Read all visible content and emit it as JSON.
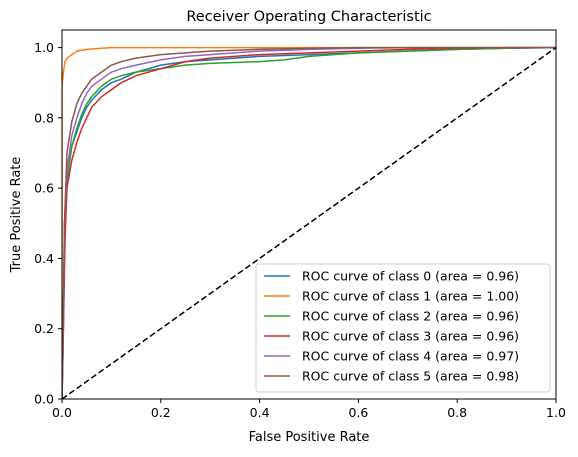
{
  "chart_data": {
    "type": "line",
    "title": "Receiver Operating Characteristic",
    "xlabel": "False Positive Rate",
    "ylabel": "True Positive Rate",
    "xlim": [
      0.0,
      1.0
    ],
    "ylim": [
      0.0,
      1.05
    ],
    "xticks": [
      "0.0",
      "0.2",
      "0.4",
      "0.6",
      "0.8",
      "1.0"
    ],
    "yticks": [
      "0.0",
      "0.2",
      "0.4",
      "0.6",
      "0.8",
      "1.0"
    ],
    "grid": false,
    "legend_position": "lower-right",
    "series": [
      {
        "name": "ROC curve of class 0 (area = 0.96)",
        "color": "#1f77b4",
        "x": [
          0,
          0.002,
          0.005,
          0.01,
          0.015,
          0.02,
          0.03,
          0.04,
          0.05,
          0.06,
          0.08,
          0.1,
          0.12,
          0.15,
          0.2,
          0.25,
          0.3,
          0.4,
          0.5,
          0.6,
          0.7,
          0.8,
          0.9,
          1.0
        ],
        "y": [
          0,
          0.2,
          0.45,
          0.6,
          0.68,
          0.72,
          0.76,
          0.8,
          0.83,
          0.85,
          0.88,
          0.9,
          0.91,
          0.93,
          0.95,
          0.96,
          0.965,
          0.975,
          0.98,
          0.985,
          0.99,
          0.995,
          0.998,
          1.0
        ]
      },
      {
        "name": "ROC curve of class 1 (area = 1.00)",
        "color": "#ff7f0e",
        "x": [
          0,
          0.0,
          0.003,
          0.006,
          0.01,
          0.015,
          0.02,
          0.03,
          0.05,
          0.08,
          0.1,
          0.2,
          0.4,
          0.6,
          1.0
        ],
        "y": [
          0,
          0.89,
          0.93,
          0.96,
          0.97,
          0.975,
          0.98,
          0.99,
          0.995,
          0.998,
          1.0,
          1.0,
          1.0,
          1.0,
          1.0
        ]
      },
      {
        "name": "ROC curve of class 2 (area = 0.96)",
        "color": "#2ca02c",
        "x": [
          0,
          0.003,
          0.006,
          0.01,
          0.02,
          0.03,
          0.04,
          0.05,
          0.06,
          0.08,
          0.1,
          0.12,
          0.15,
          0.2,
          0.25,
          0.3,
          0.4,
          0.45,
          0.5,
          0.6,
          0.7,
          0.8,
          0.9,
          1.0
        ],
        "y": [
          0,
          0.25,
          0.5,
          0.62,
          0.72,
          0.77,
          0.81,
          0.84,
          0.86,
          0.89,
          0.91,
          0.92,
          0.93,
          0.94,
          0.95,
          0.955,
          0.96,
          0.965,
          0.975,
          0.985,
          0.99,
          0.995,
          0.998,
          1.0
        ]
      },
      {
        "name": "ROC curve of class 3 (area = 0.96)",
        "color": "#d62728",
        "x": [
          0,
          0.003,
          0.006,
          0.01,
          0.02,
          0.03,
          0.04,
          0.05,
          0.06,
          0.08,
          0.1,
          0.12,
          0.15,
          0.2,
          0.25,
          0.3,
          0.4,
          0.5,
          0.6,
          0.7,
          0.8,
          0.9,
          1.0
        ],
        "y": [
          0,
          0.2,
          0.45,
          0.6,
          0.68,
          0.73,
          0.77,
          0.8,
          0.83,
          0.86,
          0.88,
          0.9,
          0.92,
          0.94,
          0.96,
          0.97,
          0.98,
          0.985,
          0.99,
          0.995,
          0.998,
          1.0,
          1.0
        ]
      },
      {
        "name": "ROC curve of class 4 (area = 0.97)",
        "color": "#9467bd",
        "x": [
          0,
          0.002,
          0.005,
          0.01,
          0.02,
          0.03,
          0.04,
          0.05,
          0.06,
          0.08,
          0.1,
          0.12,
          0.15,
          0.2,
          0.25,
          0.3,
          0.4,
          0.5,
          0.6,
          0.7,
          0.8,
          0.9,
          1.0
        ],
        "y": [
          0,
          0.13,
          0.5,
          0.65,
          0.75,
          0.8,
          0.84,
          0.87,
          0.89,
          0.91,
          0.93,
          0.94,
          0.95,
          0.965,
          0.975,
          0.98,
          0.99,
          0.995,
          0.998,
          1.0,
          1.0,
          1.0,
          1.0
        ]
      },
      {
        "name": "ROC curve of class 5 (area = 0.98)",
        "color": "#8c564b",
        "x": [
          0,
          0.002,
          0.005,
          0.01,
          0.02,
          0.03,
          0.04,
          0.05,
          0.06,
          0.08,
          0.1,
          0.12,
          0.15,
          0.2,
          0.25,
          0.3,
          0.4,
          0.5,
          0.6,
          0.7,
          0.8,
          0.9,
          1.0
        ],
        "y": [
          0,
          0.15,
          0.5,
          0.7,
          0.79,
          0.84,
          0.87,
          0.89,
          0.91,
          0.93,
          0.95,
          0.96,
          0.97,
          0.98,
          0.985,
          0.99,
          0.995,
          0.998,
          1.0,
          1.0,
          1.0,
          1.0,
          1.0
        ]
      }
    ],
    "reference_line": {
      "x": [
        0,
        1
      ],
      "y": [
        0,
        1
      ],
      "style": "dashed",
      "color": "#000000"
    }
  }
}
